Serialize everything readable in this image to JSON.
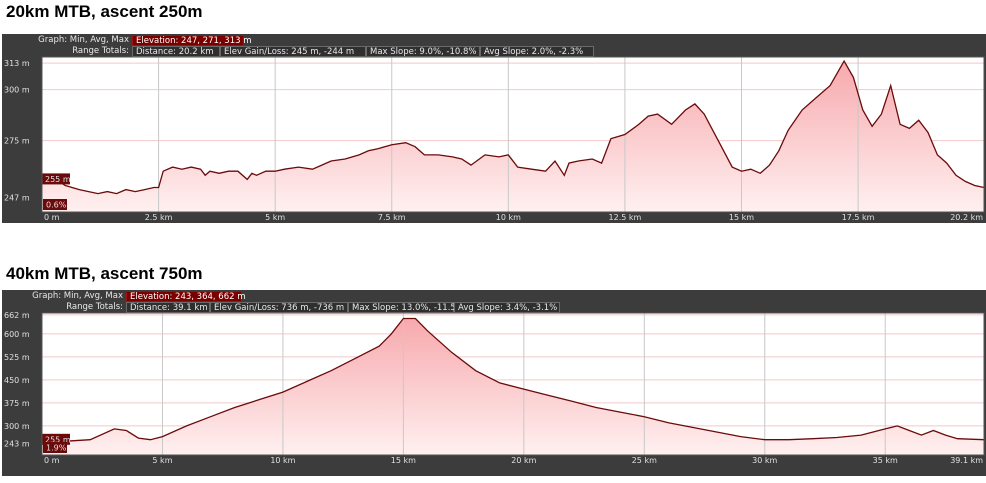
{
  "chart_data": [
    {
      "type": "area",
      "title": "20km MTB, ascent 250m",
      "header": {
        "row1_label": "Graph: Min, Avg, Max",
        "row1_value": "Elevation: 247, 271, 313 m",
        "row2_label": "Range Totals:",
        "distance": "Distance: 20.2 km",
        "elev": "Elev Gain/Loss: 245 m, -244 m",
        "max_slope": "Max Slope: 9.0%, -10.8%",
        "avg_slope": "Avg Slope: 2.0%, -2.3%"
      },
      "cursor_elevation_label": "255 m",
      "cursor_slope_label": "0.6%",
      "xlabel": "",
      "ylabel": "",
      "xlim": [
        0,
        20.2
      ],
      "ylim": [
        240,
        316
      ],
      "y_ticks": [
        247,
        275,
        300,
        313
      ],
      "y_tick_labels": [
        "247 m",
        "275 m",
        "300 m",
        "313 m"
      ],
      "x_ticks": [
        0,
        2.5,
        5,
        7.5,
        10,
        12.5,
        15,
        17.5,
        20.2
      ],
      "x_tick_labels": [
        "0 m",
        "2.5 km",
        "5 km",
        "7.5 km",
        "10 km",
        "12.5 km",
        "15 km",
        "17.5 km",
        "20.2 km"
      ],
      "x": [
        0,
        0.3,
        0.5,
        0.8,
        1.0,
        1.2,
        1.4,
        1.6,
        1.8,
        2.0,
        2.2,
        2.4,
        2.5,
        2.6,
        2.8,
        3.0,
        3.2,
        3.4,
        3.5,
        3.6,
        3.8,
        4.0,
        4.2,
        4.4,
        4.5,
        4.6,
        4.8,
        5.0,
        5.2,
        5.5,
        5.8,
        6.0,
        6.2,
        6.5,
        6.8,
        7.0,
        7.2,
        7.5,
        7.8,
        8.0,
        8.2,
        8.5,
        8.8,
        9.0,
        9.2,
        9.5,
        9.8,
        10.0,
        10.2,
        10.5,
        10.8,
        11.0,
        11.2,
        11.3,
        11.5,
        11.8,
        12.0,
        12.2,
        12.5,
        12.8,
        13.0,
        13.2,
        13.5,
        13.8,
        14.0,
        14.2,
        14.5,
        14.8,
        15.0,
        15.2,
        15.4,
        15.6,
        15.8,
        16.0,
        16.3,
        16.6,
        16.9,
        17.2,
        17.4,
        17.6,
        17.8,
        18.0,
        18.2,
        18.4,
        18.6,
        18.8,
        19.0,
        19.2,
        19.4,
        19.6,
        19.8,
        20.0,
        20.2
      ],
      "y": [
        255,
        256,
        253,
        251,
        250,
        249,
        250,
        249,
        251,
        250,
        251,
        252,
        252,
        260,
        262,
        261,
        262,
        261,
        258,
        260,
        259,
        260,
        260,
        256,
        259,
        258,
        260,
        260,
        261,
        262,
        261,
        263,
        265,
        266,
        268,
        270,
        271,
        273,
        274,
        272,
        268,
        268,
        267,
        266,
        263,
        268,
        267,
        268,
        262,
        261,
        260,
        265,
        258,
        264,
        265,
        266,
        264,
        276,
        278,
        283,
        287,
        288,
        283,
        290,
        293,
        288,
        275,
        262,
        260,
        261,
        259,
        263,
        270,
        280,
        290,
        296,
        302,
        314,
        306,
        290,
        282,
        288,
        302,
        283,
        281,
        285,
        279,
        268,
        264,
        258,
        255,
        253,
        252
      ]
    },
    {
      "type": "area",
      "title": "40km MTB, ascent 750m",
      "header": {
        "row1_label": "Graph: Min, Avg, Max",
        "row1_value": "Elevation: 243, 364, 662 m",
        "row2_label": "Range Totals:",
        "distance": "Distance: 39.1 km",
        "elev": "Elev Gain/Loss: 736 m, -736 m",
        "max_slope": "Max Slope: 13.0%, -11.5%",
        "avg_slope": "Avg Slope: 3.4%, -3.1%"
      },
      "cursor_elevation_label": "255 m",
      "cursor_slope_label": "1.9%",
      "xlabel": "",
      "ylabel": "",
      "xlim": [
        0,
        39.1
      ],
      "ylim": [
        205,
        668
      ],
      "y_ticks": [
        243,
        300,
        375,
        450,
        525,
        600,
        662
      ],
      "y_tick_labels": [
        "243 m",
        "300 m",
        "375 m",
        "450 m",
        "525 m",
        "600 m",
        "662 m"
      ],
      "x_ticks": [
        0,
        5,
        10,
        15,
        20,
        25,
        30,
        35,
        39.1
      ],
      "x_tick_labels": [
        "0 m",
        "5 km",
        "10 km",
        "15 km",
        "20 km",
        "25 km",
        "30 km",
        "35 km",
        "39.1 km"
      ],
      "x": [
        0,
        1,
        2,
        3,
        3.5,
        4,
        4.5,
        5,
        6,
        7,
        8,
        9,
        10,
        11,
        12,
        13,
        14,
        14.5,
        15,
        15.5,
        16,
        17,
        18,
        19,
        20,
        21,
        22,
        23,
        24,
        25,
        26,
        27,
        28,
        29,
        30,
        31,
        32,
        33,
        34,
        35,
        35.5,
        36,
        36.5,
        37,
        37.5,
        38,
        39.1
      ],
      "y": [
        248,
        250,
        255,
        290,
        285,
        260,
        255,
        265,
        300,
        330,
        360,
        385,
        410,
        445,
        480,
        520,
        560,
        600,
        650,
        650,
        610,
        540,
        480,
        440,
        420,
        400,
        380,
        360,
        345,
        330,
        310,
        295,
        280,
        265,
        255,
        255,
        258,
        262,
        270,
        290,
        300,
        285,
        270,
        285,
        270,
        258,
        255
      ]
    }
  ]
}
